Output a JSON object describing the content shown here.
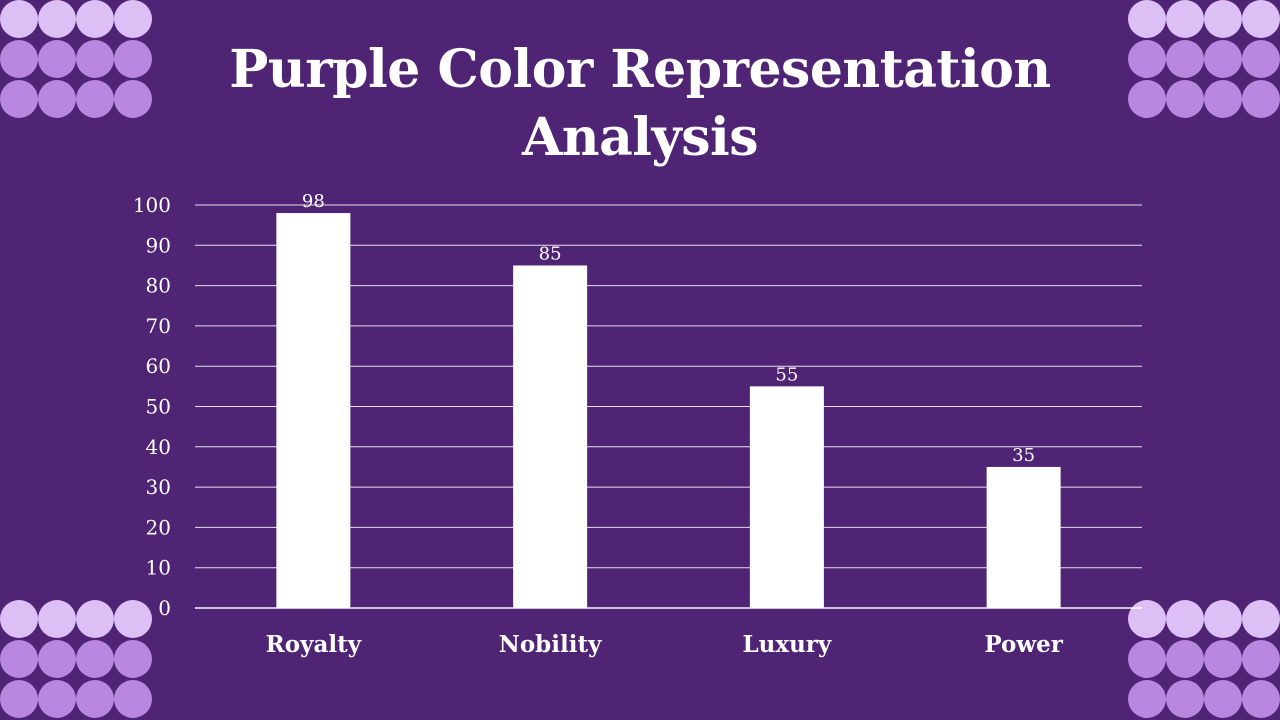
{
  "colors": {
    "background": "#4f2474",
    "bar": "#ffffff",
    "gridline": "#ffffff",
    "dot_light": "#dcc0f5",
    "dot_medium": "#b887e0"
  },
  "decorations": {
    "corner_pattern": "circle-grid-icon"
  },
  "chart_data": {
    "type": "bar",
    "title": "Purple Color Representation\nAnalysis",
    "categories": [
      "Royalty",
      "Nobility",
      "Luxury",
      "Power"
    ],
    "values": [
      98,
      85,
      55,
      35
    ],
    "ylim": [
      0,
      100
    ],
    "yticks": [
      0,
      10,
      20,
      30,
      40,
      50,
      60,
      70,
      80,
      90,
      100
    ],
    "xlabel": "",
    "ylabel": "",
    "grid": true,
    "data_labels": true,
    "legend": "none"
  }
}
